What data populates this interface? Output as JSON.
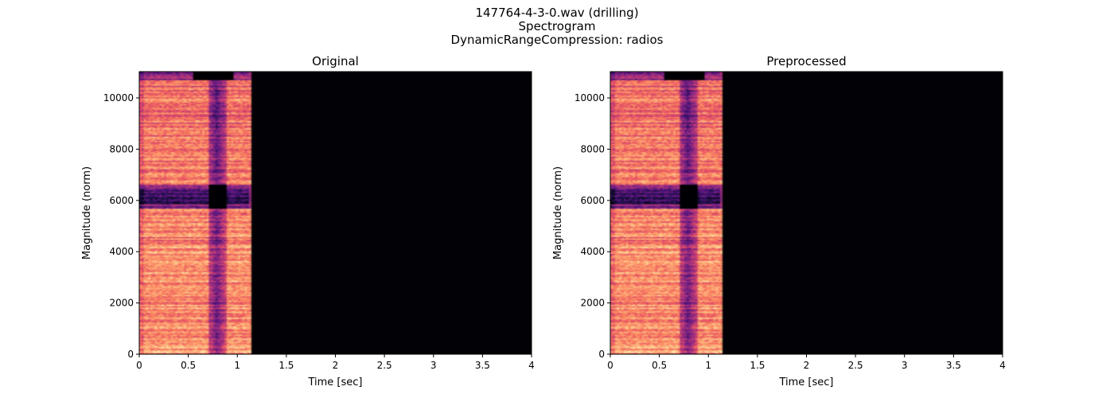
{
  "figure": {
    "title_lines": [
      "147764-4-3-0.wav (drilling)",
      "Spectrogram",
      "DynamicRangeCompression: radios"
    ]
  },
  "chart_data": [
    {
      "type": "heatmap",
      "title": "Original",
      "xlabel": "Time [sec]",
      "ylabel": "Magnitude (norm)",
      "xlim": [
        0,
        4.0
      ],
      "ylim": [
        0,
        11025
      ],
      "xticks": [
        0,
        0.5,
        1,
        1.5,
        2,
        2.5,
        3,
        3.5,
        4
      ],
      "xtick_labels": [
        "0",
        "0.5",
        "1",
        "1.5",
        "2",
        "2.5",
        "3",
        "3.5",
        "4"
      ],
      "yticks": [
        0,
        2000,
        4000,
        6000,
        8000,
        10000
      ],
      "ytick_labels": [
        "0",
        "2000",
        "4000",
        "6000",
        "8000",
        "10000"
      ],
      "colormap": "magma",
      "signal_end_sec": 1.15,
      "dip_sec": [
        0.72,
        0.86
      ],
      "dark_band_hz": [
        5700,
        6600
      ],
      "grid": false
    },
    {
      "type": "heatmap",
      "title": "Preprocessed",
      "xlabel": "Time [sec]",
      "ylabel": "Magnitude (norm)",
      "xlim": [
        0,
        4.0
      ],
      "ylim": [
        0,
        11025
      ],
      "xticks": [
        0,
        0.5,
        1,
        1.5,
        2,
        2.5,
        3,
        3.5,
        4
      ],
      "xtick_labels": [
        "0",
        "0.5",
        "1",
        "1.5",
        "2",
        "2.5",
        "3",
        "3.5",
        "4"
      ],
      "yticks": [
        0,
        2000,
        4000,
        6000,
        8000,
        10000
      ],
      "ytick_labels": [
        "0",
        "2000",
        "4000",
        "6000",
        "8000",
        "10000"
      ],
      "colormap": "magma",
      "signal_end_sec": 1.15,
      "dip_sec": [
        0.72,
        0.86
      ],
      "dark_band_hz": [
        5700,
        6600
      ],
      "grid": false
    }
  ]
}
